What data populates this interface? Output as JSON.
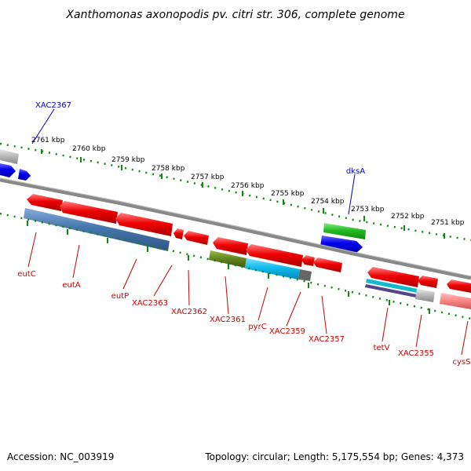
{
  "title": "Xanthomonas axonopodis pv. citri str. 306, complete genome",
  "footer": {
    "accession": "Accession: NC_003919",
    "summary": "Topology: circular; Length: 5,175,554 bp; Genes: 4,373"
  },
  "ticks": [
    "2761 kbp",
    "2760 kbp",
    "2759 kbp",
    "2758 kbp",
    "2757 kbp",
    "2756 kbp",
    "2755 kbp",
    "2754 kbp",
    "2753 kbp",
    "2752 kbp",
    "2751 kbp"
  ],
  "genes_outer": [
    "XAC2367",
    "dksA"
  ],
  "genes_inner": [
    "eutC",
    "eutA",
    "eutP",
    "XAC2363",
    "XAC2362",
    "XAC2361",
    "pyrC",
    "XAC2359",
    "XAC2357",
    "tetV",
    "XAC2355",
    "cysS"
  ],
  "colors": {
    "forward_cds": "#0000ee",
    "reverse_cds": "#ee0000",
    "feature_green": "#22bb22",
    "feature_steelblue": "#4477aa",
    "feature_olive": "#668822",
    "feature_cyan": "#11bbee",
    "backbone": "#888888",
    "tick": "#118811"
  }
}
